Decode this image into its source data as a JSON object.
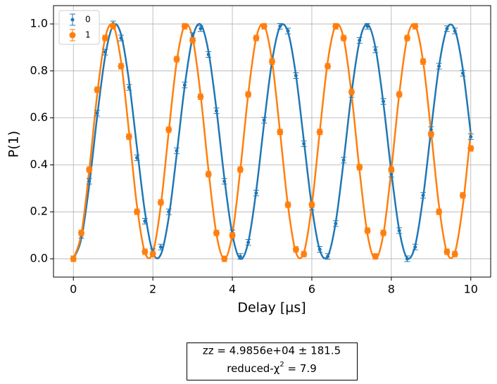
{
  "chart_data": {
    "type": "errorbar",
    "xlabel": "Delay [µs]",
    "ylabel": "P(1)",
    "x": [
      0,
      0.2,
      0.4,
      0.6,
      0.8,
      1.0,
      1.2,
      1.4,
      1.6,
      1.8,
      2.0,
      2.2,
      2.4,
      2.6,
      2.8,
      3.0,
      3.2,
      3.4,
      3.6,
      3.8,
      4.0,
      4.2,
      4.4,
      4.6,
      4.8,
      5.0,
      5.2,
      5.4,
      5.6,
      5.8,
      6.0,
      6.2,
      6.4,
      6.6,
      6.8,
      7.0,
      7.2,
      7.4,
      7.6,
      7.8,
      8.0,
      8.2,
      8.4,
      8.6,
      8.8,
      9.0,
      9.2,
      9.4,
      9.6,
      9.8,
      10.0
    ],
    "series": [
      {
        "name": "0",
        "color": "#1f77b4",
        "error": 0.012,
        "values": [
          0.0,
          0.1,
          0.33,
          0.62,
          0.88,
          1.0,
          0.94,
          0.73,
          0.43,
          0.16,
          0.03,
          0.05,
          0.2,
          0.46,
          0.74,
          0.95,
          0.98,
          0.87,
          0.63,
          0.33,
          0.11,
          0.01,
          0.07,
          0.28,
          0.59,
          0.84,
          0.99,
          0.97,
          0.78,
          0.49,
          0.22,
          0.04,
          0.01,
          0.15,
          0.42,
          0.7,
          0.93,
          0.99,
          0.89,
          0.67,
          0.36,
          0.12,
          0.0,
          0.05,
          0.27,
          0.55,
          0.82,
          0.98,
          0.97,
          0.79,
          0.52
        ],
        "fit": [
          0,
          0.086,
          0.315,
          0.607,
          0.862,
          0.994,
          0.955,
          0.757,
          0.474,
          0.2,
          0.027,
          0.018,
          0.176,
          0.445,
          0.733,
          0.941,
          0.998,
          0.882,
          0.636,
          0.342,
          0.104,
          0.0,
          0.07,
          0.289,
          0.578,
          0.842,
          0.988,
          0.965,
          0.782,
          0.502,
          0.223,
          0.037,
          0.011,
          0.154,
          0.416,
          0.707,
          0.926,
          0.999,
          0.9,
          0.663,
          0.37,
          0.122,
          0.003,
          0.056,
          0.262,
          0.549,
          0.82,
          0.98,
          0.975,
          0.807,
          0.532
        ]
      },
      {
        "name": "1",
        "color": "#ff7f0e",
        "error": 0.012,
        "values": [
          0.0,
          0.11,
          0.38,
          0.72,
          0.94,
          0.99,
          0.82,
          0.52,
          0.2,
          0.03,
          0.02,
          0.24,
          0.55,
          0.85,
          0.99,
          0.93,
          0.69,
          0.36,
          0.11,
          0.0,
          0.1,
          0.38,
          0.7,
          0.94,
          0.99,
          0.84,
          0.54,
          0.23,
          0.04,
          0.02,
          0.23,
          0.54,
          0.82,
          0.99,
          0.94,
          0.71,
          0.39,
          0.12,
          0.01,
          0.11,
          0.38,
          0.7,
          0.94,
          0.99,
          0.84,
          0.53,
          0.2,
          0.03,
          0.02,
          0.27,
          0.47
        ],
        "fit": [
          0,
          0.105,
          0.378,
          0.701,
          0.94,
          0.994,
          0.84,
          0.541,
          0.226,
          0.027,
          0.027,
          0.227,
          0.542,
          0.839,
          0.993,
          0.94,
          0.7,
          0.377,
          0.105,
          0,
          0.105,
          0.378,
          0.701,
          0.94,
          0.994,
          0.84,
          0.541,
          0.226,
          0.027,
          0.027,
          0.227,
          0.542,
          0.839,
          0.993,
          0.94,
          0.7,
          0.377,
          0.105,
          0,
          0.105,
          0.378,
          0.701,
          0.94,
          0.994,
          0.84,
          0.541,
          0.226,
          0.027,
          0.027,
          0.227,
          0.542
        ]
      }
    ],
    "xlim": [
      -0.5,
      10.5
    ],
    "xticks": [
      0,
      2,
      4,
      6,
      8,
      10
    ],
    "ylim": [
      -0.078,
      1.078
    ],
    "yticks": [
      {
        "value": 0,
        "label": "0.0"
      },
      0.2,
      0.4,
      0.6,
      0.8,
      {
        "value": 1,
        "label": "1.0"
      }
    ],
    "grid": true,
    "legend": "upper left",
    "annotation": {
      "line1": "zz =   4.9856e+04 ±  181.5",
      "line2": "reduced-χ",
      "line2_sup": "2",
      "line2_rest": " =  7.9"
    }
  }
}
